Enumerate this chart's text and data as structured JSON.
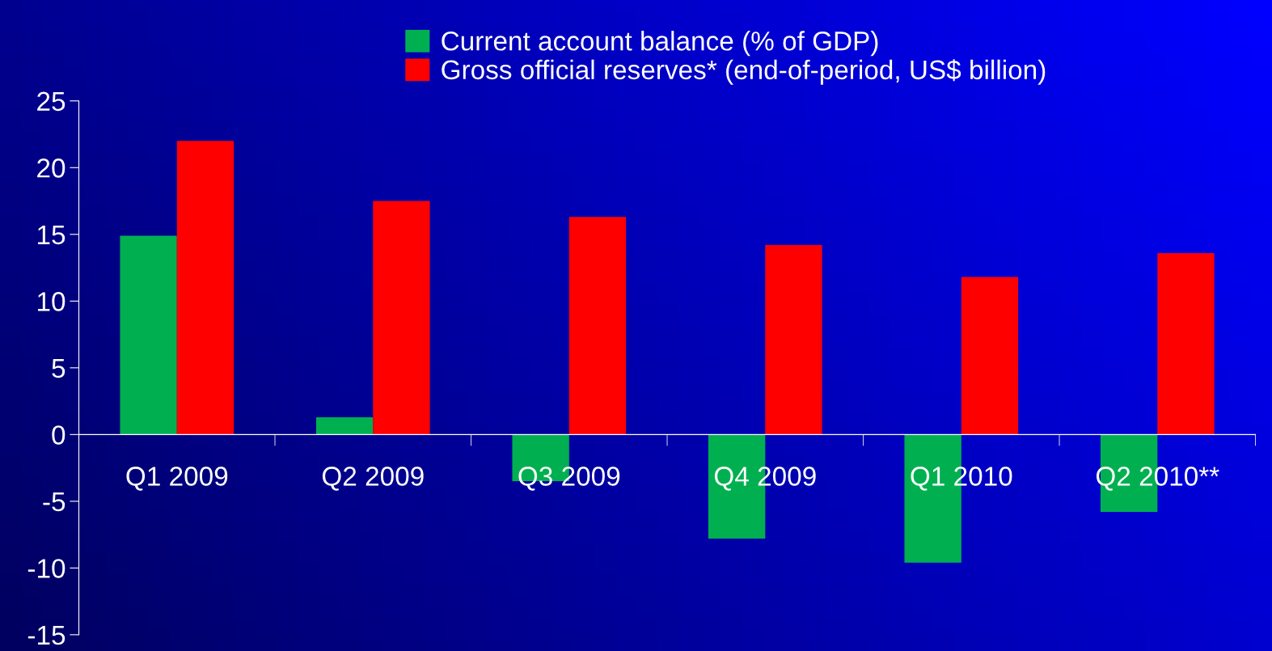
{
  "chart_data": {
    "type": "bar",
    "categories": [
      "Q1 2009",
      "Q2 2009",
      "Q3 2009",
      "Q4 2009",
      "Q1 2010",
      "Q2 2010**"
    ],
    "series": [
      {
        "name": "Current account balance (% of GDP)",
        "color": "#00b050",
        "values": [
          14.9,
          1.3,
          -3.5,
          -7.8,
          -9.6,
          -5.8
        ]
      },
      {
        "name": "Gross official reserves* (end-of-period, US$ billion)",
        "color": "#ff0000",
        "values": [
          22.0,
          17.5,
          16.3,
          14.2,
          11.8,
          13.6
        ]
      }
    ],
    "ylim": [
      -15,
      25
    ],
    "yticks": [
      -15,
      -10,
      -5,
      0,
      5,
      10,
      15,
      20,
      25
    ],
    "grid": false,
    "legend": "top"
  }
}
